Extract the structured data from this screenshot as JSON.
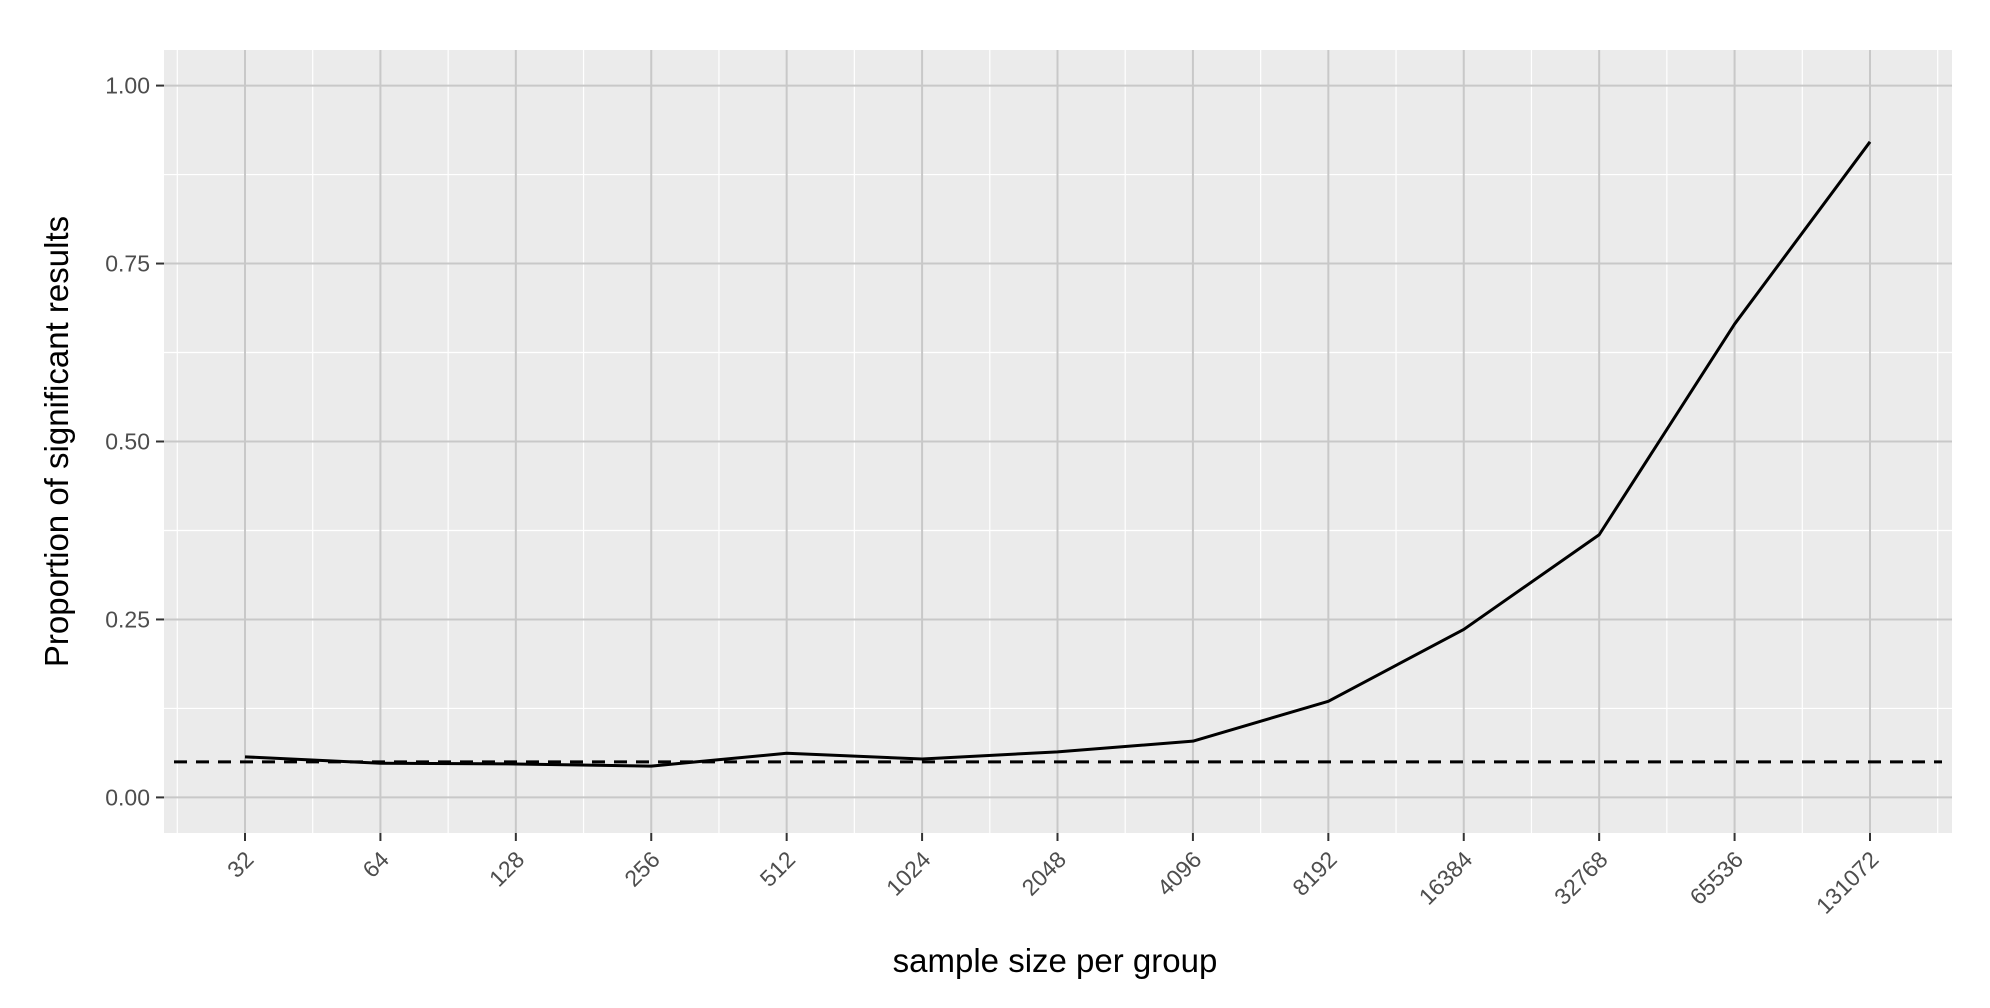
{
  "chart_data": {
    "type": "line",
    "title": "",
    "xlabel": "sample size per group",
    "ylabel": "Proportion of significant results",
    "x_scale": "log2",
    "x": [
      32,
      64,
      128,
      256,
      512,
      1024,
      2048,
      4096,
      8192,
      16384,
      32768,
      65536,
      131072
    ],
    "x_tick_labels": [
      "32",
      "64",
      "128",
      "256",
      "512",
      "1024",
      "2048",
      "4096",
      "8192",
      "16384",
      "32768",
      "65536",
      "131072"
    ],
    "series": [
      {
        "values": [
          0.057,
          0.048,
          0.047,
          0.044,
          0.062,
          0.054,
          0.064,
          0.079,
          0.135,
          0.236,
          0.369,
          0.665,
          0.921
        ],
        "color": "#000000",
        "line_style": "solid"
      }
    ],
    "reference_line": {
      "y": 0.05,
      "color": "#000000",
      "line_style": "dashed"
    },
    "ylim": [
      -0.05,
      1.05
    ],
    "y_ticks": [
      0.0,
      0.25,
      0.5,
      0.75,
      1.0
    ],
    "y_tick_labels": [
      "0.00",
      "0.25",
      "0.50",
      "0.75",
      "1.00"
    ],
    "grid": true,
    "panel_background": "#ebebeb",
    "gridline_color": "#c8c8c8"
  }
}
